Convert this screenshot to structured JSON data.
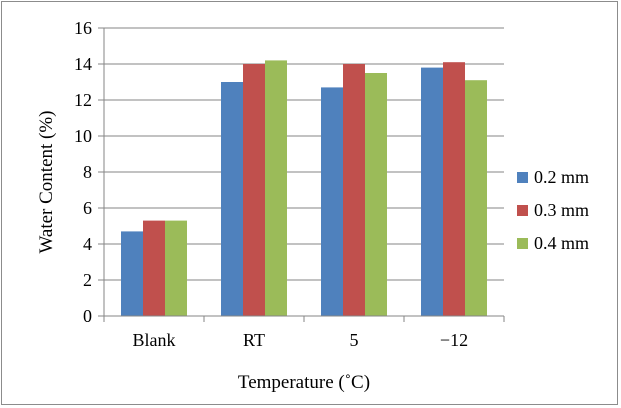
{
  "chart_data": {
    "type": "bar",
    "title": "",
    "xlabel": "Temperature (˚C)",
    "ylabel": "Water Content (%)",
    "ylim": [
      0,
      16
    ],
    "yticks": [
      "0",
      "2",
      "4",
      "6",
      "8",
      "10",
      "12",
      "14",
      "16"
    ],
    "grid": true,
    "legend_position": "right",
    "categories": [
      "Blank",
      "RT",
      "5",
      "−12"
    ],
    "series": [
      {
        "name": "0.2 mm",
        "color": "#4f81bd",
        "values": [
          4.7,
          13.0,
          12.7,
          13.8
        ]
      },
      {
        "name": "0.3 mm",
        "color": "#c0504d",
        "values": [
          5.3,
          14.0,
          14.0,
          14.1
        ]
      },
      {
        "name": "0.4 mm",
        "color": "#9bbb59",
        "values": [
          5.3,
          14.2,
          13.5,
          13.1
        ]
      }
    ]
  }
}
